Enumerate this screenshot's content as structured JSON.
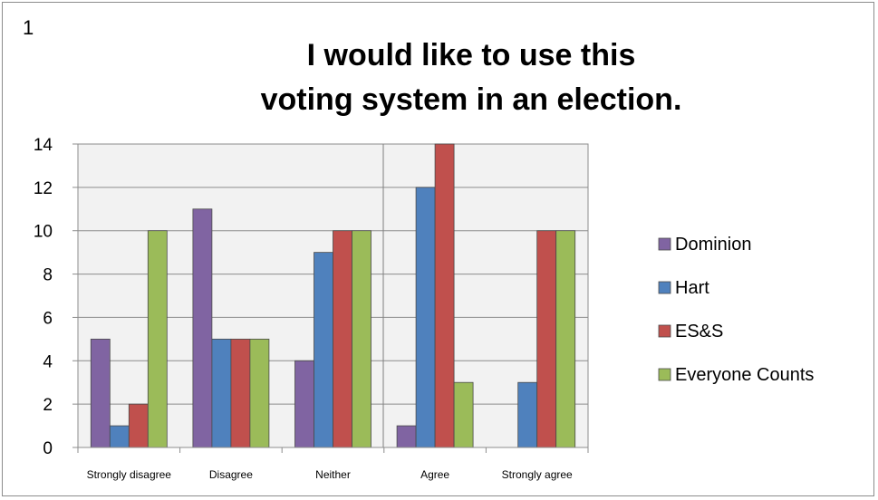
{
  "page_number": "1",
  "chart_data": {
    "type": "bar",
    "title_line1": "I would like to use this",
    "title_line2": "voting system in an election.",
    "categories": [
      "Strongly disagree",
      "Disagree",
      "Neither",
      "Agree",
      "Strongly agree"
    ],
    "series": [
      {
        "name": "Dominion",
        "color": "#8064A2",
        "values": [
          5,
          11,
          4,
          1,
          0
        ]
      },
      {
        "name": "Hart",
        "color": "#4F81BD",
        "values": [
          1,
          5,
          9,
          12,
          3
        ]
      },
      {
        "name": "ES&S",
        "color": "#C0504D",
        "values": [
          2,
          5,
          10,
          14,
          10
        ]
      },
      {
        "name": "Everyone Counts",
        "color": "#9BBB59",
        "values": [
          10,
          5,
          10,
          3,
          10
        ]
      }
    ],
    "ylim": [
      0,
      14
    ],
    "yticks": [
      0,
      2,
      4,
      6,
      8,
      10,
      12,
      14
    ],
    "grid": true,
    "legend_position": "right"
  }
}
